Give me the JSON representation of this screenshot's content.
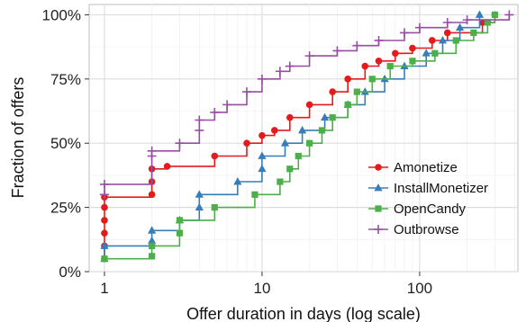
{
  "chart_data": {
    "type": "line",
    "title": "",
    "xlabel": "Offer duration in days (log scale)",
    "ylabel": "Fraction of offers",
    "x_scale": "log",
    "xlim": [
      0.8,
      420
    ],
    "ylim": [
      0,
      1.04
    ],
    "x_ticks": [
      1,
      10,
      100
    ],
    "x_tick_labels": [
      "1",
      "10",
      "100"
    ],
    "y_ticks": [
      0,
      0.25,
      0.5,
      0.75,
      1.0
    ],
    "y_tick_labels": [
      "0%",
      "25%",
      "50%",
      "75%",
      "100%"
    ],
    "grid": true,
    "legend_position": "inside-bottom-right",
    "series": [
      {
        "name": "Amonetize",
        "color": "#e41a1c",
        "marker": "circle",
        "points": [
          [
            1,
            0.05
          ],
          [
            1,
            0.1
          ],
          [
            1,
            0.15
          ],
          [
            1,
            0.2
          ],
          [
            1,
            0.25
          ],
          [
            1,
            0.29
          ],
          [
            2,
            0.3
          ],
          [
            2,
            0.35
          ],
          [
            2,
            0.4
          ],
          [
            2.5,
            0.41
          ],
          [
            5,
            0.45
          ],
          [
            8,
            0.5
          ],
          [
            10,
            0.53
          ],
          [
            12,
            0.55
          ],
          [
            15,
            0.6
          ],
          [
            20,
            0.65
          ],
          [
            28,
            0.7
          ],
          [
            35,
            0.75
          ],
          [
            45,
            0.8
          ],
          [
            55,
            0.82
          ],
          [
            70,
            0.85
          ],
          [
            90,
            0.87
          ],
          [
            120,
            0.9
          ],
          [
            150,
            0.93
          ],
          [
            250,
            0.97
          ],
          [
            300,
            1.0
          ]
        ]
      },
      {
        "name": "InstallMonetizer",
        "color": "#377eb8",
        "marker": "triangle",
        "points": [
          [
            1,
            0.05
          ],
          [
            1,
            0.1
          ],
          [
            2,
            0.12
          ],
          [
            2,
            0.16
          ],
          [
            3,
            0.2
          ],
          [
            4,
            0.25
          ],
          [
            4,
            0.3
          ],
          [
            7,
            0.35
          ],
          [
            10,
            0.4
          ],
          [
            10,
            0.45
          ],
          [
            14,
            0.5
          ],
          [
            18,
            0.55
          ],
          [
            25,
            0.6
          ],
          [
            35,
            0.65
          ],
          [
            45,
            0.7
          ],
          [
            60,
            0.75
          ],
          [
            80,
            0.8
          ],
          [
            110,
            0.85
          ],
          [
            140,
            0.9
          ],
          [
            180,
            0.95
          ],
          [
            240,
            1.0
          ]
        ]
      },
      {
        "name": "OpenCandy",
        "color": "#4daf4a",
        "marker": "square",
        "points": [
          [
            1,
            0.05
          ],
          [
            2,
            0.06
          ],
          [
            2,
            0.1
          ],
          [
            3,
            0.15
          ],
          [
            3,
            0.2
          ],
          [
            5,
            0.25
          ],
          [
            9,
            0.3
          ],
          [
            13,
            0.35
          ],
          [
            15,
            0.4
          ],
          [
            17,
            0.45
          ],
          [
            20,
            0.5
          ],
          [
            24,
            0.55
          ],
          [
            28,
            0.6
          ],
          [
            35,
            0.65
          ],
          [
            40,
            0.7
          ],
          [
            50,
            0.75
          ],
          [
            65,
            0.8
          ],
          [
            90,
            0.82
          ],
          [
            125,
            0.85
          ],
          [
            170,
            0.9
          ],
          [
            220,
            0.93
          ],
          [
            270,
            0.97
          ],
          [
            300,
            1.0
          ]
        ]
      },
      {
        "name": "Outbrowse",
        "color": "#984ea3",
        "marker": "plus",
        "points": [
          [
            1,
            0.3
          ],
          [
            1,
            0.34
          ],
          [
            2,
            0.45
          ],
          [
            2,
            0.47
          ],
          [
            3,
            0.5
          ],
          [
            4,
            0.55
          ],
          [
            4,
            0.59
          ],
          [
            5,
            0.62
          ],
          [
            6,
            0.65
          ],
          [
            8,
            0.7
          ],
          [
            10,
            0.75
          ],
          [
            13,
            0.78
          ],
          [
            15,
            0.8
          ],
          [
            20,
            0.84
          ],
          [
            30,
            0.86
          ],
          [
            40,
            0.88
          ],
          [
            55,
            0.9
          ],
          [
            80,
            0.93
          ],
          [
            100,
            0.95
          ],
          [
            150,
            0.97
          ],
          [
            200,
            0.98
          ],
          [
            370,
            1.0
          ]
        ]
      }
    ]
  }
}
